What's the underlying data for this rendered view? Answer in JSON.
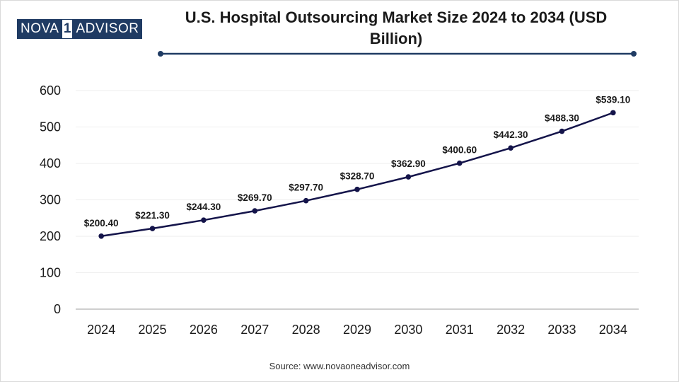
{
  "brand": {
    "part1": "NOVA",
    "part2": "1",
    "part3": "ADVISOR"
  },
  "source": "Source: www.novaoneadvisor.com",
  "colors": {
    "line": "#14144a",
    "axis": "#bfbfbf",
    "grid": "#eeeeee",
    "decor": "#1f3b63",
    "text": "#1a1a1a"
  },
  "chart_data": {
    "type": "line",
    "title": "U.S. Hospital Outsourcing Market Size 2024 to 2034 (USD Billion)",
    "xlabel": "",
    "ylabel": "",
    "categories": [
      "2024",
      "2025",
      "2026",
      "2027",
      "2028",
      "2029",
      "2030",
      "2031",
      "2032",
      "2033",
      "2034"
    ],
    "series": [
      {
        "name": "Market Size",
        "values": [
          200.4,
          221.3,
          244.3,
          269.7,
          297.7,
          328.7,
          362.9,
          400.6,
          442.3,
          488.3,
          539.1
        ],
        "labels": [
          "$200.40",
          "$221.30",
          "$244.30",
          "$269.70",
          "$297.70",
          "$328.70",
          "$362.90",
          "$400.60",
          "$442.30",
          "$488.30",
          "$539.10"
        ]
      }
    ],
    "ylim": [
      0,
      600
    ],
    "yticks": [
      0,
      100,
      200,
      300,
      400,
      500,
      600
    ],
    "grid": true,
    "legend": "none"
  }
}
